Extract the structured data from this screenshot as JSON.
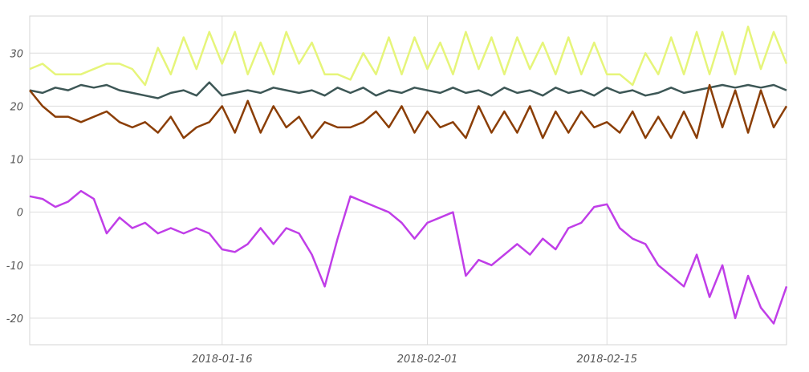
{
  "chart_data": {
    "type": "line",
    "title": "",
    "xlabel": "",
    "ylabel": "",
    "x_range": [
      "2018-01-01",
      "2018-03-01"
    ],
    "ylim": [
      -25,
      37
    ],
    "y_ticks": [
      "30",
      "20",
      "10",
      "0",
      "-10",
      "-20"
    ],
    "y_tick_values": [
      30,
      20,
      10,
      0,
      -10,
      -20
    ],
    "x_ticks": [
      "2018-01-16",
      "2018-02-01",
      "2018-02-15"
    ],
    "x_tick_values": [
      "2018-01-16",
      "2018-02-01",
      "2018-02-15"
    ],
    "grid": true,
    "legend": "none",
    "series": [
      {
        "color": "#e6f57a",
        "x": [
          "2018-01-01",
          "2018-01-02",
          "2018-01-03",
          "2018-01-05",
          "2018-01-07",
          "2018-01-08",
          "2018-01-09",
          "2018-01-10",
          "2018-01-11",
          "2018-01-12",
          "2018-01-13",
          "2018-01-14",
          "2018-01-15",
          "2018-01-16",
          "2018-01-17",
          "2018-01-18",
          "2018-01-19",
          "2018-01-20",
          "2018-01-21",
          "2018-01-22",
          "2018-01-23",
          "2018-01-24",
          "2018-01-25",
          "2018-01-26",
          "2018-01-27",
          "2018-01-28",
          "2018-01-29",
          "2018-01-30",
          "2018-01-31",
          "2018-02-01",
          "2018-02-02",
          "2018-02-03",
          "2018-02-04",
          "2018-02-05",
          "2018-02-06",
          "2018-02-07",
          "2018-02-08",
          "2018-02-09",
          "2018-02-10",
          "2018-02-11",
          "2018-02-12",
          "2018-02-13",
          "2018-02-14",
          "2018-02-15",
          "2018-02-16",
          "2018-02-17",
          "2018-02-18",
          "2018-02-19",
          "2018-02-20",
          "2018-02-21",
          "2018-02-22",
          "2018-02-23",
          "2018-02-24",
          "2018-02-25",
          "2018-02-26",
          "2018-02-27",
          "2018-02-28",
          "2018-03-01"
        ],
        "y": [
          27,
          28,
          26,
          26,
          28,
          28,
          27,
          24,
          31,
          26,
          33,
          27,
          34,
          28,
          34,
          26,
          32,
          26,
          34,
          28,
          32,
          26,
          26,
          25,
          30,
          26,
          33,
          26,
          33,
          27,
          32,
          26,
          34,
          27,
          33,
          26,
          33,
          27,
          32,
          26,
          33,
          26,
          32,
          26,
          26,
          24,
          30,
          26,
          33,
          26,
          34,
          26,
          34,
          26,
          35,
          27,
          34,
          28
        ]
      },
      {
        "color": "#3d5756",
        "x": [
          "2018-01-01",
          "2018-01-02",
          "2018-01-03",
          "2018-01-04",
          "2018-01-05",
          "2018-01-06",
          "2018-01-07",
          "2018-01-08",
          "2018-01-09",
          "2018-01-10",
          "2018-01-11",
          "2018-01-12",
          "2018-01-13",
          "2018-01-14",
          "2018-01-15",
          "2018-01-16",
          "2018-01-17",
          "2018-01-18",
          "2018-01-19",
          "2018-01-20",
          "2018-01-21",
          "2018-01-22",
          "2018-01-23",
          "2018-01-24",
          "2018-01-25",
          "2018-01-26",
          "2018-01-27",
          "2018-01-28",
          "2018-01-29",
          "2018-01-30",
          "2018-01-31",
          "2018-02-01",
          "2018-02-02",
          "2018-02-03",
          "2018-02-04",
          "2018-02-05",
          "2018-02-06",
          "2018-02-07",
          "2018-02-08",
          "2018-02-09",
          "2018-02-10",
          "2018-02-11",
          "2018-02-12",
          "2018-02-13",
          "2018-02-14",
          "2018-02-15",
          "2018-02-16",
          "2018-02-17",
          "2018-02-18",
          "2018-02-19",
          "2018-02-20",
          "2018-02-21",
          "2018-02-22",
          "2018-02-23",
          "2018-02-24",
          "2018-02-25",
          "2018-02-26",
          "2018-02-27",
          "2018-02-28",
          "2018-03-01"
        ],
        "y": [
          23,
          22.5,
          23.5,
          23,
          24,
          23.5,
          24,
          23,
          22.5,
          22,
          21.5,
          22.5,
          23,
          22,
          24.5,
          22,
          22.5,
          23,
          22.5,
          23.5,
          23,
          22.5,
          23,
          22,
          23.5,
          22.5,
          23.5,
          22,
          23,
          22.5,
          23.5,
          23,
          22.5,
          23.5,
          22.5,
          23,
          22,
          23.5,
          22.5,
          23,
          22,
          23.5,
          22.5,
          23,
          22,
          23.5,
          22.5,
          23,
          22,
          22.5,
          23.5,
          22.5,
          23,
          23.5,
          24,
          23.5,
          24,
          23.5,
          24,
          23
        ]
      },
      {
        "color": "#8b3e06",
        "x": [
          "2018-01-01",
          "2018-01-02",
          "2018-01-03",
          "2018-01-04",
          "2018-01-05",
          "2018-01-07",
          "2018-01-08",
          "2018-01-09",
          "2018-01-10",
          "2018-01-11",
          "2018-01-12",
          "2018-01-13",
          "2018-01-14",
          "2018-01-15",
          "2018-01-16",
          "2018-01-17",
          "2018-01-18",
          "2018-01-19",
          "2018-01-20",
          "2018-01-21",
          "2018-01-22",
          "2018-01-23",
          "2018-01-24",
          "2018-01-25",
          "2018-01-26",
          "2018-01-27",
          "2018-01-28",
          "2018-01-29",
          "2018-01-30",
          "2018-01-31",
          "2018-02-01",
          "2018-02-02",
          "2018-02-03",
          "2018-02-04",
          "2018-02-05",
          "2018-02-06",
          "2018-02-07",
          "2018-02-08",
          "2018-02-09",
          "2018-02-10",
          "2018-02-11",
          "2018-02-12",
          "2018-02-13",
          "2018-02-14",
          "2018-02-15",
          "2018-02-16",
          "2018-02-17",
          "2018-02-18",
          "2018-02-19",
          "2018-02-20",
          "2018-02-21",
          "2018-02-22",
          "2018-02-23",
          "2018-02-24",
          "2018-02-25",
          "2018-02-26",
          "2018-02-27",
          "2018-02-28",
          "2018-03-01"
        ],
        "y": [
          23,
          20,
          18,
          18,
          17,
          19,
          17,
          16,
          17,
          15,
          18,
          14,
          16,
          17,
          20,
          15,
          21,
          15,
          20,
          16,
          18,
          14,
          17,
          16,
          16,
          17,
          19,
          16,
          20,
          15,
          19,
          16,
          17,
          14,
          20,
          15,
          19,
          15,
          20,
          14,
          19,
          15,
          19,
          16,
          17,
          15,
          19,
          14,
          18,
          14,
          19,
          14,
          24,
          16,
          23,
          15,
          23,
          16,
          20
        ]
      },
      {
        "color": "#c03ee8",
        "x": [
          "2018-01-01",
          "2018-01-02",
          "2018-01-03",
          "2018-01-04",
          "2018-01-05",
          "2018-01-06",
          "2018-01-07",
          "2018-01-08",
          "2018-01-09",
          "2018-01-10",
          "2018-01-11",
          "2018-01-12",
          "2018-01-13",
          "2018-01-14",
          "2018-01-15",
          "2018-01-16",
          "2018-01-17",
          "2018-01-18",
          "2018-01-19",
          "2018-01-20",
          "2018-01-21",
          "2018-01-22",
          "2018-01-23",
          "2018-01-24",
          "2018-01-25",
          "2018-01-26",
          "2018-01-27",
          "2018-01-28",
          "2018-01-29",
          "2018-01-30",
          "2018-01-31",
          "2018-02-01",
          "2018-02-02",
          "2018-02-03",
          "2018-02-04",
          "2018-02-05",
          "2018-02-06",
          "2018-02-07",
          "2018-02-08",
          "2018-02-09",
          "2018-02-10",
          "2018-02-11",
          "2018-02-12",
          "2018-02-13",
          "2018-02-14",
          "2018-02-15",
          "2018-02-16",
          "2018-02-17",
          "2018-02-18",
          "2018-02-19",
          "2018-02-20",
          "2018-02-21",
          "2018-02-22",
          "2018-02-23",
          "2018-02-24",
          "2018-02-25",
          "2018-02-26",
          "2018-02-27",
          "2018-02-28",
          "2018-03-01"
        ],
        "y": [
          3,
          2.5,
          1,
          2,
          4,
          2.5,
          -4,
          -1,
          -3,
          -2,
          -4,
          -3,
          -4,
          -3,
          -4,
          -7,
          -7.5,
          -6,
          -3,
          -6,
          -3,
          -4,
          -8,
          -14,
          -5,
          3,
          2,
          1,
          0,
          -2,
          -5,
          -2,
          -1,
          0,
          -12,
          -9,
          -10,
          -8,
          -6,
          -8,
          -5,
          -7,
          -3,
          -2,
          1,
          1.5,
          -3,
          -5,
          -6,
          -10,
          -12,
          -14,
          -8,
          -16,
          -10,
          -20,
          -12,
          -18,
          -21,
          -14
        ]
      }
    ]
  }
}
